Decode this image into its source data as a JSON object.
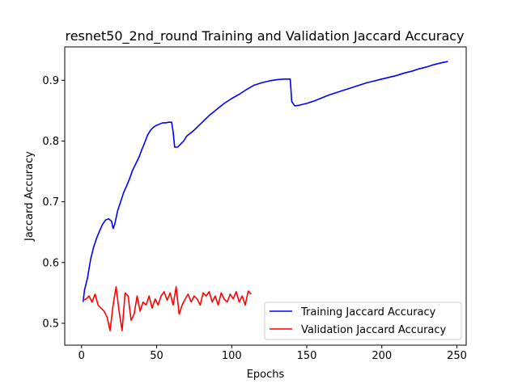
{
  "chart_data": {
    "type": "line",
    "title": "resnet50_2nd_round Training and Validation Jaccard Accuracy",
    "xlabel": "Epochs",
    "ylabel": "Jaccard Accuracy",
    "xlim": [
      -11.2,
      256.2
    ],
    "ylim": [
      0.464,
      0.955
    ],
    "xticks": [
      0,
      50,
      100,
      150,
      200,
      250
    ],
    "yticks": [
      0.5,
      0.6,
      0.7,
      0.8,
      0.9
    ],
    "ytick_labels": [
      "0.5",
      "0.6",
      "0.7",
      "0.8",
      "0.9"
    ],
    "grid": false,
    "legend_position": "lower right",
    "series": [
      {
        "name": "Training Jaccard Accuracy",
        "color": "#0000ff",
        "x": [
          1,
          2,
          4,
          6,
          8,
          10,
          12,
          14,
          16,
          18,
          20,
          21,
          22,
          24,
          26,
          28,
          30,
          32,
          34,
          36,
          38,
          40,
          42,
          44,
          46,
          48,
          50,
          52,
          54,
          56,
          58,
          60,
          61,
          62,
          64,
          66,
          68,
          70,
          75,
          80,
          85,
          90,
          95,
          100,
          105,
          110,
          115,
          120,
          125,
          130,
          135,
          139,
          140,
          142,
          145,
          150,
          155,
          160,
          165,
          170,
          175,
          180,
          185,
          190,
          195,
          200,
          205,
          210,
          215,
          220,
          225,
          230,
          235,
          240,
          244
        ],
        "values": [
          0.535,
          0.555,
          0.575,
          0.605,
          0.625,
          0.64,
          0.652,
          0.663,
          0.67,
          0.672,
          0.668,
          0.656,
          0.662,
          0.685,
          0.7,
          0.715,
          0.726,
          0.738,
          0.752,
          0.762,
          0.772,
          0.785,
          0.797,
          0.81,
          0.818,
          0.823,
          0.826,
          0.828,
          0.83,
          0.83,
          0.831,
          0.831,
          0.815,
          0.79,
          0.79,
          0.795,
          0.8,
          0.808,
          0.818,
          0.83,
          0.842,
          0.852,
          0.862,
          0.87,
          0.877,
          0.885,
          0.892,
          0.896,
          0.899,
          0.901,
          0.902,
          0.902,
          0.865,
          0.858,
          0.859,
          0.862,
          0.866,
          0.871,
          0.876,
          0.88,
          0.884,
          0.888,
          0.892,
          0.896,
          0.899,
          0.902,
          0.905,
          0.908,
          0.912,
          0.915,
          0.919,
          0.922,
          0.926,
          0.929,
          0.931
        ]
      },
      {
        "name": "Validation Jaccard Accuracy",
        "color": "#ff0000",
        "x": [
          1,
          3,
          5,
          7,
          9,
          11,
          13,
          15,
          17,
          19,
          21,
          23,
          25,
          27,
          29,
          31,
          33,
          35,
          37,
          39,
          41,
          43,
          45,
          47,
          49,
          51,
          53,
          55,
          57,
          59,
          61,
          63,
          65,
          67,
          69,
          71,
          73,
          75,
          77,
          79,
          81,
          83,
          85,
          87,
          89,
          91,
          93,
          95,
          97,
          99,
          101,
          103,
          105,
          107,
          109,
          111,
          113
        ],
        "values": [
          0.538,
          0.54,
          0.545,
          0.535,
          0.548,
          0.53,
          0.525,
          0.52,
          0.51,
          0.488,
          0.53,
          0.56,
          0.52,
          0.488,
          0.55,
          0.545,
          0.505,
          0.515,
          0.545,
          0.52,
          0.535,
          0.53,
          0.545,
          0.525,
          0.54,
          0.53,
          0.545,
          0.552,
          0.538,
          0.55,
          0.53,
          0.56,
          0.515,
          0.53,
          0.54,
          0.548,
          0.535,
          0.545,
          0.54,
          0.53,
          0.55,
          0.545,
          0.552,
          0.535,
          0.545,
          0.53,
          0.55,
          0.54,
          0.535,
          0.548,
          0.54,
          0.552,
          0.535,
          0.545,
          0.53,
          0.553,
          0.548
        ]
      }
    ]
  }
}
